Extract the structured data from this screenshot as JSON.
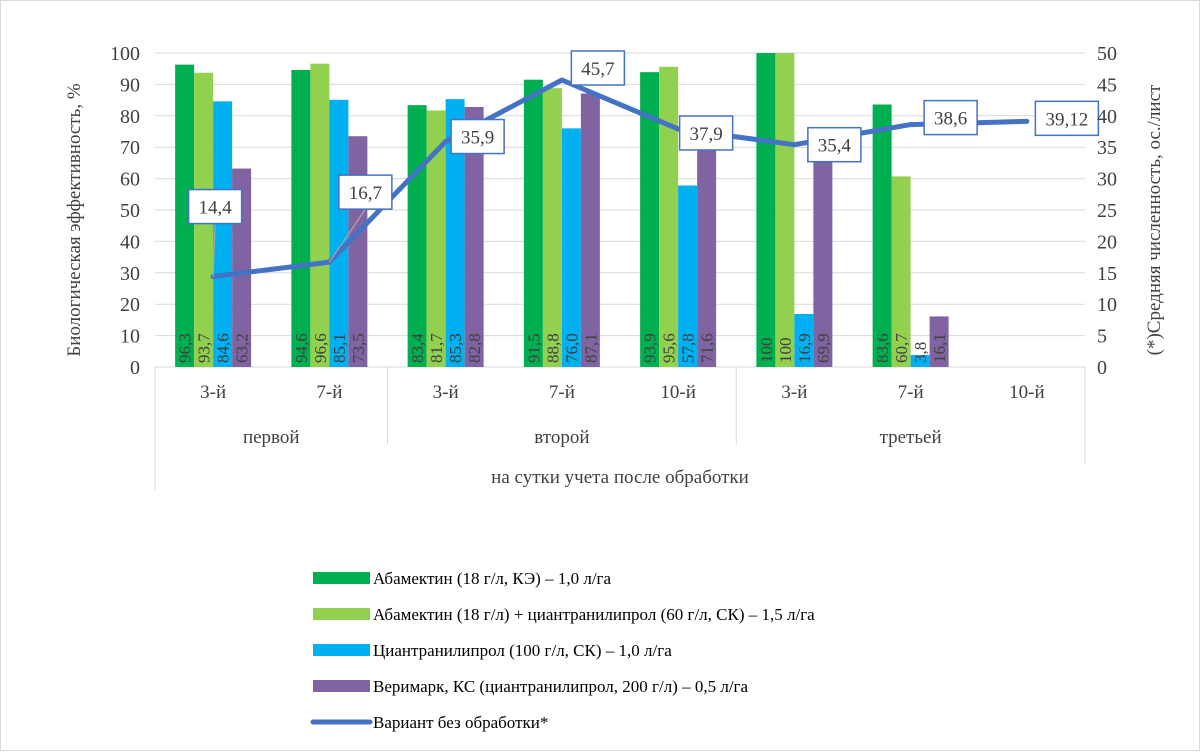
{
  "chart_data": {
    "type": "bar",
    "ylabel": "Биологическая эффективность, %",
    "y2label": "(*)Средняя численность, ос./лист",
    "xlabel": "на сутки учета после обработки",
    "ylim": [
      0,
      100
    ],
    "y2lim": [
      0,
      50
    ],
    "yticks": [
      "0",
      "10",
      "20",
      "30",
      "40",
      "50",
      "60",
      "70",
      "80",
      "90",
      "100"
    ],
    "y2ticks": [
      "0",
      "5",
      "10",
      "15",
      "20",
      "25",
      "30",
      "35",
      "40",
      "45",
      "50"
    ],
    "groups": [
      {
        "name": "первой",
        "categories": [
          "3-й",
          "7-й"
        ]
      },
      {
        "name": "второй",
        "categories": [
          "3-й",
          "7-й",
          "10-й"
        ]
      },
      {
        "name": "третьей",
        "categories": [
          "3-й",
          "7-й",
          "10-й"
        ]
      }
    ],
    "categories": [
      "3-й",
      "7-й",
      "3-й",
      "7-й",
      "10-й",
      "3-й",
      "7-й",
      "10-й"
    ],
    "series": [
      {
        "name": "Абамектин (18 г/л, КЭ) – 1,0 л/га",
        "color": "#00b050",
        "values": [
          96.3,
          94.6,
          83.4,
          91.5,
          93.9,
          100,
          83.6,
          null
        ],
        "labels": [
          "96,3",
          "94,6",
          "83,4",
          "91,5",
          "93,9",
          "100",
          "83,6",
          ""
        ]
      },
      {
        "name": "Абамектин (18 г/л) + циантранилипрол (60 г/л, СК) – 1,5 л/га",
        "color": "#92d050",
        "values": [
          93.7,
          96.6,
          81.7,
          88.8,
          95.6,
          100,
          60.7,
          null
        ],
        "labels": [
          "93,7",
          "96,6",
          "81,7",
          "88,8",
          "95,6",
          "100",
          "60,7",
          ""
        ]
      },
      {
        "name": "Циантранилипрол (100 г/л, СК) – 1,0 л/га",
        "color": "#00b0f0",
        "values": [
          84.6,
          85.1,
          85.3,
          76.0,
          57.8,
          16.9,
          3.8,
          null
        ],
        "labels": [
          "84,6",
          "85,1",
          "85,3",
          "76,0",
          "57,8",
          "16,9",
          "3,8",
          ""
        ]
      },
      {
        "name": "Веримарк, КС (циантранилипрол, 200 г/л) – 0,5 л/га",
        "color": "#8064a2",
        "values": [
          63.2,
          73.5,
          82.8,
          87.1,
          71.6,
          69.9,
          16.1,
          null
        ],
        "labels": [
          "63,2",
          "73,5",
          "82,8",
          "87,1",
          "71,6",
          "69,9",
          "16,1",
          ""
        ]
      }
    ],
    "line": {
      "name": "Вариант без обработки*",
      "color": "#4472c4",
      "axis": "secondary",
      "values": [
        14.4,
        16.7,
        35.9,
        45.7,
        37.9,
        35.4,
        38.6,
        39.12
      ],
      "labels": [
        "14,4",
        "16,7",
        "35,9",
        "45,7",
        "37,9",
        "35,4",
        "38,6",
        "39,12"
      ]
    },
    "legend_position": "bottom",
    "grid": true
  }
}
